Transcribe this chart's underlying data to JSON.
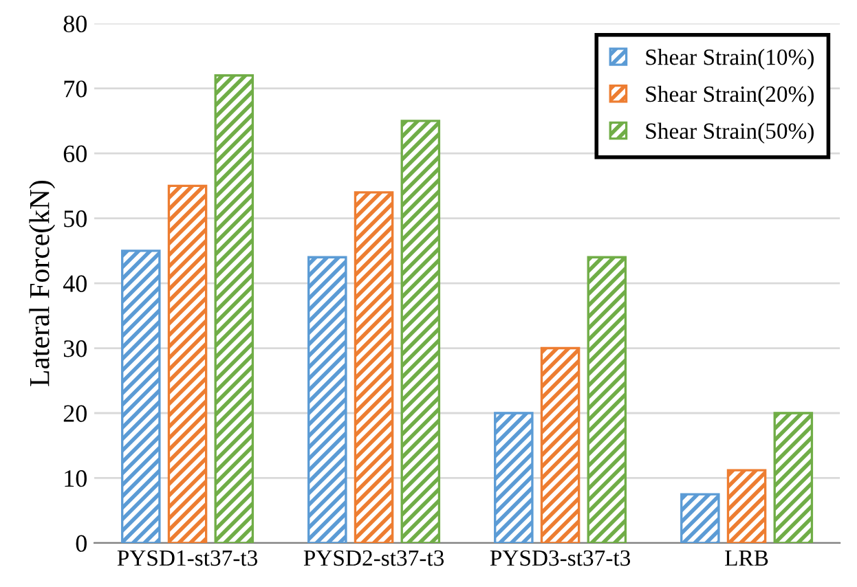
{
  "chart_data": {
    "type": "bar",
    "ylabel": "Lateral Force(kN)",
    "categories": [
      "PYSD1-st37-t3",
      "PYSD2-st37-t3",
      "PYSD3-st37-t3",
      "LRB"
    ],
    "series": [
      {
        "name": "Shear Strain(10%)",
        "color": "#5b9bd5",
        "values": [
          45,
          44,
          20,
          7.5
        ]
      },
      {
        "name": "Shear Strain(20%)",
        "color": "#ed7d31",
        "values": [
          55,
          54,
          30,
          11.2
        ]
      },
      {
        "name": "Shear Strain(50%)",
        "color": "#70ad47",
        "values": [
          72,
          65,
          44,
          20
        ]
      }
    ],
    "ylim": [
      0,
      80
    ],
    "yticks": [
      0,
      10,
      20,
      30,
      40,
      50,
      60,
      70,
      80
    ],
    "grid": "y",
    "legend": "top right"
  }
}
